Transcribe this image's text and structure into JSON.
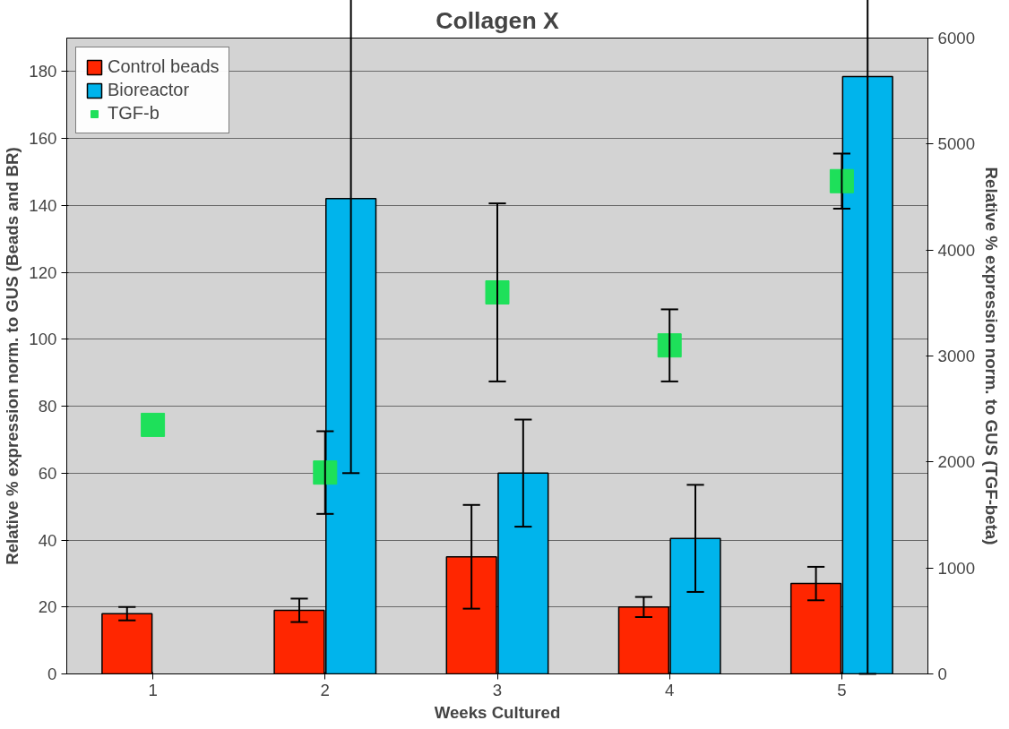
{
  "chart_data": {
    "type": "bar",
    "title": "Collagen X",
    "xlabel": "Weeks Cultured",
    "ylabel": "Relative % expression norm. to GUS (Beads and BR)",
    "y2label": "Relative % expression norm. to GUS (TGF-beta)",
    "categories": [
      "1",
      "2",
      "3",
      "4",
      "5"
    ],
    "series": [
      {
        "name": "Control beads",
        "color": "#ff2600",
        "values": [
          18,
          19,
          35,
          20,
          27
        ],
        "errors": [
          2,
          3.5,
          15.5,
          3,
          5
        ]
      },
      {
        "name": "Bioreactor",
        "color": "#00b4ec",
        "values": [
          null,
          142,
          60,
          40.5,
          178.5
        ],
        "errors": [
          null,
          82,
          16,
          16,
          178.5
        ]
      },
      {
        "name": "TGF-b",
        "type": "scatter",
        "axis": "y2",
        "marker": "square",
        "color": "#1ee05a",
        "values": [
          2350,
          1900,
          3600,
          3100,
          4650
        ],
        "errors": [
          null,
          390,
          840,
          340,
          260
        ]
      }
    ],
    "ylim": [
      0,
      190
    ],
    "yticks": [
      0,
      20,
      40,
      60,
      80,
      100,
      120,
      140,
      160,
      180
    ],
    "y2lim": [
      0,
      6000
    ],
    "y2ticks": [
      0,
      1000,
      2000,
      3000,
      4000,
      5000,
      6000
    ],
    "grid": "y",
    "legend": "top left"
  }
}
